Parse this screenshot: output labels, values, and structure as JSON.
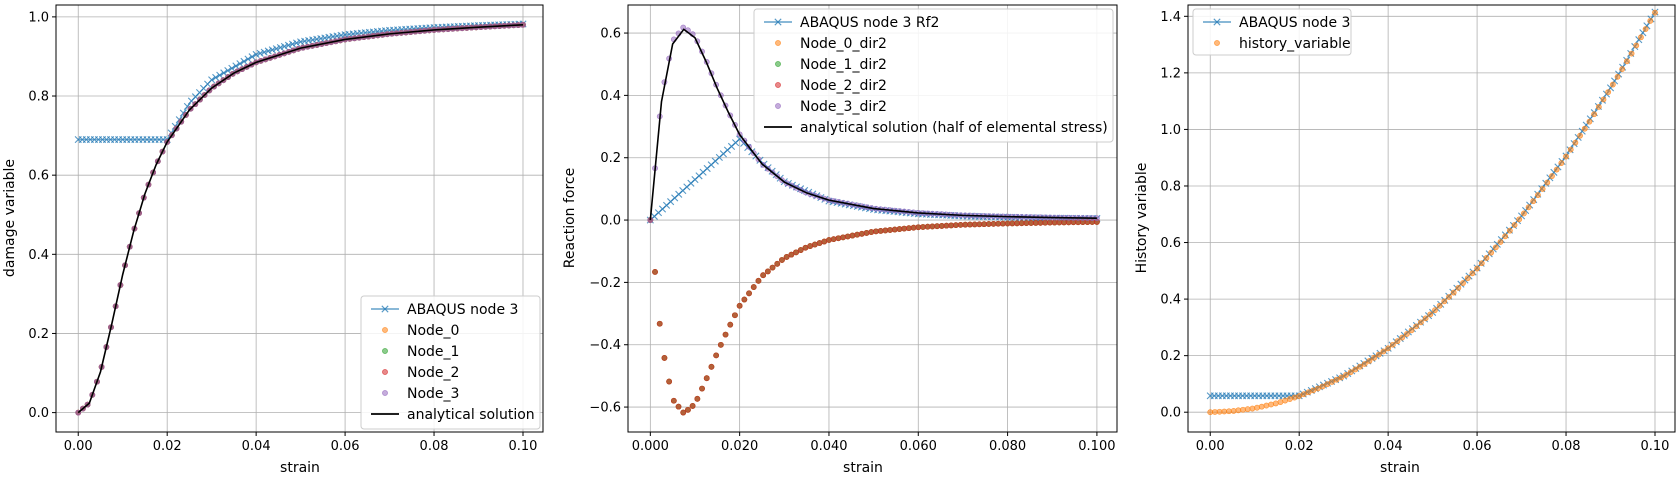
{
  "chart_data": [
    {
      "id": "damage",
      "type": "line",
      "xlabel": "strain",
      "ylabel": "damage variable",
      "xlim": [
        -0.005,
        0.1045
      ],
      "ylim": [
        -0.049,
        1.03
      ],
      "xticks": [
        0.0,
        0.02,
        0.04,
        0.06,
        0.08,
        0.1
      ],
      "xtick_labels": [
        "0.00",
        "0.02",
        "0.04",
        "0.06",
        "0.08",
        "0.10"
      ],
      "yticks": [
        0.0,
        0.2,
        0.4,
        0.6,
        0.8,
        1.0
      ],
      "ytick_labels": [
        "0.0",
        "0.2",
        "0.4",
        "0.6",
        "0.8",
        "1.0"
      ],
      "grid": true,
      "legend_position": "lower-right",
      "series": [
        {
          "name": "ABAQUS node 3",
          "marker": "x",
          "color": "#1f77b4",
          "x": [
            0.0,
            0.002,
            0.004,
            0.006,
            0.008,
            0.01,
            0.012,
            0.014,
            0.016,
            0.018,
            0.02,
            0.025,
            0.03,
            0.04,
            0.05,
            0.06,
            0.07,
            0.08,
            0.09,
            0.1
          ],
          "y": [
            0.69,
            0.69,
            0.69,
            0.69,
            0.69,
            0.69,
            0.69,
            0.69,
            0.69,
            0.69,
            0.69,
            0.782,
            0.841,
            0.905,
            0.937,
            0.955,
            0.966,
            0.973,
            0.978,
            0.982
          ]
        },
        {
          "name": "Node_0",
          "marker": "o",
          "color": "#ff7f0e",
          "x": [
            0.0,
            0.0025,
            0.005,
            0.0075,
            0.01,
            0.0125,
            0.015,
            0.0175,
            0.02,
            0.025,
            0.03,
            0.035,
            0.04,
            0.05,
            0.06,
            0.07,
            0.08,
            0.09,
            0.1
          ],
          "y": [
            0.0,
            0.024,
            0.103,
            0.222,
            0.349,
            0.46,
            0.553,
            0.626,
            0.684,
            0.765,
            0.82,
            0.858,
            0.885,
            0.921,
            0.943,
            0.957,
            0.967,
            0.974,
            0.98
          ]
        },
        {
          "name": "Node_1",
          "marker": "o",
          "color": "#2ca02c",
          "x": [
            0.0,
            0.0025,
            0.005,
            0.0075,
            0.01,
            0.0125,
            0.015,
            0.0175,
            0.02,
            0.025,
            0.03,
            0.035,
            0.04,
            0.05,
            0.06,
            0.07,
            0.08,
            0.09,
            0.1
          ],
          "y": [
            0.0,
            0.024,
            0.103,
            0.222,
            0.349,
            0.46,
            0.553,
            0.626,
            0.684,
            0.765,
            0.82,
            0.858,
            0.885,
            0.921,
            0.943,
            0.957,
            0.967,
            0.974,
            0.98
          ]
        },
        {
          "name": "Node_2",
          "marker": "o",
          "color": "#d62728",
          "x": [
            0.0,
            0.0025,
            0.005,
            0.0075,
            0.01,
            0.0125,
            0.015,
            0.0175,
            0.02,
            0.025,
            0.03,
            0.035,
            0.04,
            0.05,
            0.06,
            0.07,
            0.08,
            0.09,
            0.1
          ],
          "y": [
            0.0,
            0.024,
            0.103,
            0.222,
            0.349,
            0.46,
            0.553,
            0.626,
            0.684,
            0.765,
            0.82,
            0.858,
            0.885,
            0.921,
            0.943,
            0.957,
            0.967,
            0.974,
            0.98
          ]
        },
        {
          "name": "Node_3",
          "marker": "o",
          "color": "#9467bd",
          "x": [
            0.0,
            0.0025,
            0.005,
            0.0075,
            0.01,
            0.0125,
            0.015,
            0.0175,
            0.02,
            0.025,
            0.03,
            0.035,
            0.04,
            0.05,
            0.06,
            0.07,
            0.08,
            0.09,
            0.1
          ],
          "y": [
            0.0,
            0.024,
            0.103,
            0.222,
            0.349,
            0.46,
            0.553,
            0.626,
            0.684,
            0.765,
            0.82,
            0.858,
            0.885,
            0.921,
            0.943,
            0.957,
            0.967,
            0.974,
            0.98
          ]
        },
        {
          "name": "analytical solution",
          "marker": "line",
          "color": "#000000",
          "x": [
            0.0,
            0.0025,
            0.005,
            0.0075,
            0.01,
            0.0125,
            0.015,
            0.0175,
            0.02,
            0.025,
            0.03,
            0.035,
            0.04,
            0.05,
            0.06,
            0.07,
            0.08,
            0.09,
            0.1
          ],
          "y": [
            0.0,
            0.024,
            0.103,
            0.222,
            0.349,
            0.46,
            0.553,
            0.626,
            0.684,
            0.765,
            0.82,
            0.858,
            0.885,
            0.921,
            0.943,
            0.957,
            0.967,
            0.974,
            0.98
          ]
        }
      ]
    },
    {
      "id": "reaction",
      "type": "line",
      "xlabel": "strain",
      "ylabel": "Reaction force",
      "xlim": [
        -0.005,
        0.1045
      ],
      "ylim": [
        -0.68,
        0.69
      ],
      "xticks": [
        0.0,
        0.02,
        0.04,
        0.06,
        0.08,
        0.1
      ],
      "xtick_labels": [
        "0.000",
        "0.020",
        "0.040",
        "0.060",
        "0.080",
        "0.100"
      ],
      "yticks": [
        -0.6,
        -0.4,
        -0.2,
        0.0,
        0.2,
        0.4,
        0.6
      ],
      "ytick_labels": [
        "−0.6",
        "−0.4",
        "−0.2",
        "0.0",
        "0.2",
        "0.4",
        "0.6"
      ],
      "grid": true,
      "legend_position": "upper-right",
      "series": [
        {
          "name": "ABAQUS node 3 Rf2",
          "marker": "x",
          "color": "#1f77b4",
          "x": [
            0.0,
            0.002,
            0.004,
            0.006,
            0.008,
            0.01,
            0.012,
            0.014,
            0.016,
            0.018,
            0.02,
            0.025,
            0.03,
            0.04,
            0.05,
            0.06,
            0.07,
            0.08,
            0.09,
            0.1
          ],
          "y": [
            0.0,
            0.026,
            0.052,
            0.078,
            0.104,
            0.13,
            0.156,
            0.182,
            0.208,
            0.234,
            0.26,
            0.185,
            0.123,
            0.061,
            0.034,
            0.02,
            0.013,
            0.009,
            0.006,
            0.005
          ]
        },
        {
          "name": "Node_0_dir2",
          "marker": "o",
          "color": "#ff7f0e",
          "x": [
            0.0,
            0.0025,
            0.005,
            0.0075,
            0.01,
            0.0125,
            0.015,
            0.0175,
            0.02,
            0.025,
            0.03,
            0.035,
            0.04,
            0.05,
            0.06,
            0.07,
            0.08,
            0.09,
            0.1
          ],
          "y": [
            0.0,
            -0.395,
            -0.575,
            -0.62,
            -0.59,
            -0.512,
            -0.425,
            -0.347,
            -0.275,
            -0.18,
            -0.122,
            -0.087,
            -0.064,
            -0.037,
            -0.023,
            -0.015,
            -0.011,
            -0.008,
            -0.006
          ]
        },
        {
          "name": "Node_1_dir2",
          "marker": "o",
          "color": "#2ca02c",
          "x": [
            0.0,
            0.0025,
            0.005,
            0.0075,
            0.01,
            0.0125,
            0.015,
            0.0175,
            0.02,
            0.025,
            0.03,
            0.035,
            0.04,
            0.05,
            0.06,
            0.07,
            0.08,
            0.09,
            0.1
          ],
          "y": [
            0.0,
            -0.395,
            -0.575,
            -0.62,
            -0.59,
            -0.512,
            -0.425,
            -0.347,
            -0.275,
            -0.18,
            -0.122,
            -0.087,
            -0.064,
            -0.037,
            -0.023,
            -0.015,
            -0.011,
            -0.008,
            -0.006
          ]
        },
        {
          "name": "Node_2_dir2",
          "marker": "o",
          "color": "#d62728",
          "x": [
            0.0,
            0.0025,
            0.005,
            0.0075,
            0.01,
            0.0125,
            0.015,
            0.0175,
            0.02,
            0.025,
            0.03,
            0.035,
            0.04,
            0.05,
            0.06,
            0.07,
            0.08,
            0.09,
            0.1
          ],
          "y": [
            0.0,
            -0.395,
            -0.575,
            -0.62,
            -0.59,
            -0.512,
            -0.425,
            -0.347,
            -0.275,
            -0.18,
            -0.122,
            -0.087,
            -0.064,
            -0.037,
            -0.023,
            -0.015,
            -0.011,
            -0.008,
            -0.006
          ]
        },
        {
          "name": "Node_3_dir2",
          "marker": "o",
          "color": "#9467bd",
          "x": [
            0.0,
            0.0025,
            0.005,
            0.0075,
            0.01,
            0.0125,
            0.015,
            0.0175,
            0.02,
            0.025,
            0.03,
            0.035,
            0.04,
            0.05,
            0.06,
            0.07,
            0.08,
            0.09,
            0.1
          ],
          "y": [
            0.0,
            0.395,
            0.575,
            0.62,
            0.59,
            0.512,
            0.425,
            0.347,
            0.275,
            0.18,
            0.122,
            0.087,
            0.064,
            0.037,
            0.023,
            0.015,
            0.011,
            0.008,
            0.006
          ]
        },
        {
          "name": "analytical solution (half of elemental stress)",
          "marker": "line",
          "color": "#000000",
          "x": [
            0.0,
            0.0025,
            0.005,
            0.0075,
            0.01,
            0.0125,
            0.015,
            0.0175,
            0.02,
            0.025,
            0.03,
            0.035,
            0.04,
            0.05,
            0.06,
            0.07,
            0.08,
            0.09,
            0.1
          ],
          "y": [
            0.0,
            0.38,
            0.565,
            0.612,
            0.585,
            0.508,
            0.422,
            0.345,
            0.274,
            0.18,
            0.122,
            0.087,
            0.064,
            0.037,
            0.023,
            0.015,
            0.011,
            0.008,
            0.006
          ]
        }
      ]
    },
    {
      "id": "history",
      "type": "line",
      "xlabel": "strain",
      "ylabel": "History variable",
      "xlim": [
        -0.005,
        0.1045
      ],
      "ylim": [
        -0.07,
        1.44
      ],
      "xticks": [
        0.0,
        0.02,
        0.04,
        0.06,
        0.08,
        0.1
      ],
      "xtick_labels": [
        "0.00",
        "0.02",
        "0.04",
        "0.06",
        "0.08",
        "0.10"
      ],
      "yticks": [
        0.0,
        0.2,
        0.4,
        0.6,
        0.8,
        1.0,
        1.2,
        1.4
      ],
      "ytick_labels": [
        "0.0",
        "0.2",
        "0.4",
        "0.6",
        "0.8",
        "1.0",
        "1.2",
        "1.4"
      ],
      "grid": true,
      "legend_position": "upper-left",
      "series": [
        {
          "name": "ABAQUS node 3",
          "marker": "x",
          "color": "#1f77b4",
          "x": [
            0.0,
            0.002,
            0.004,
            0.006,
            0.008,
            0.01,
            0.012,
            0.014,
            0.016,
            0.018,
            0.02,
            0.03,
            0.04,
            0.05,
            0.06,
            0.07,
            0.08,
            0.09,
            0.1
          ],
          "y": [
            0.058,
            0.058,
            0.058,
            0.058,
            0.058,
            0.058,
            0.058,
            0.058,
            0.058,
            0.058,
            0.058,
            0.128,
            0.226,
            0.353,
            0.51,
            0.694,
            0.906,
            1.147,
            1.415
          ]
        },
        {
          "name": "history_variable",
          "marker": "o",
          "color": "#ff7f0e",
          "x": [
            0.0,
            0.005,
            0.01,
            0.015,
            0.02,
            0.025,
            0.03,
            0.035,
            0.04,
            0.045,
            0.05,
            0.055,
            0.06,
            0.065,
            0.07,
            0.075,
            0.08,
            0.085,
            0.09,
            0.095,
            0.1
          ],
          "y": [
            0.0,
            0.004,
            0.014,
            0.032,
            0.057,
            0.089,
            0.127,
            0.173,
            0.226,
            0.286,
            0.353,
            0.427,
            0.508,
            0.597,
            0.692,
            0.795,
            0.904,
            1.021,
            1.145,
            1.275,
            1.413
          ]
        }
      ]
    }
  ]
}
